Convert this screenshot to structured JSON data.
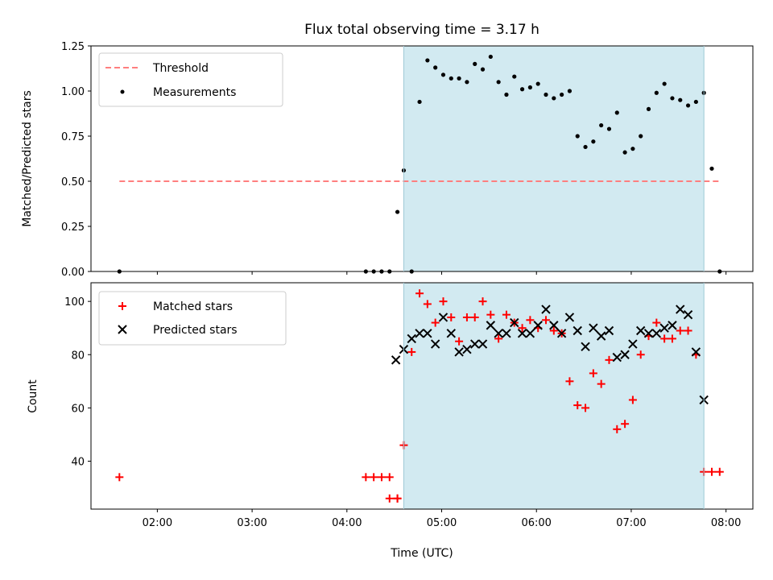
{
  "chart_data": [
    {
      "type": "scatter",
      "title": "Flux total observing time = 3.17 h",
      "ylabel": "Matched/Predicted stars",
      "xlabel": "",
      "ylim": [
        0,
        1.25
      ],
      "yticks": [
        0.0,
        0.25,
        0.5,
        0.75,
        1.0,
        1.25
      ],
      "ytick_labels": [
        "0.00",
        "0.25",
        "0.50",
        "0.75",
        "1.00",
        "1.25"
      ],
      "shaded_interval": {
        "start": "04:36",
        "end": "07:46",
        "color": "#add8e6"
      },
      "legend_position": "top-left",
      "series": [
        {
          "name": "Threshold",
          "style": "dashed-line",
          "color": "#ff7f7f",
          "x": [
            "01:36",
            "07:56"
          ],
          "y": [
            0.5,
            0.5
          ]
        },
        {
          "name": "Measurements",
          "style": "dot",
          "color": "#000000",
          "x": [
            "01:36",
            "04:12",
            "04:17",
            "04:22",
            "04:27",
            "04:32",
            "04:41",
            "04:36",
            "04:46",
            "04:51",
            "04:56",
            "05:01",
            "05:06",
            "05:11",
            "05:16",
            "05:21",
            "05:26",
            "05:31",
            "05:36",
            "05:41",
            "05:46",
            "05:51",
            "05:56",
            "06:01",
            "06:06",
            "06:11",
            "06:16",
            "06:21",
            "06:26",
            "06:31",
            "06:36",
            "06:41",
            "06:46",
            "06:51",
            "06:56",
            "07:01",
            "07:06",
            "07:11",
            "07:16",
            "07:21",
            "07:26",
            "07:31",
            "07:36",
            "07:41",
            "07:46",
            "07:51",
            "07:56"
          ],
          "y": [
            0.0,
            0.0,
            0.0,
            0.0,
            0.0,
            0.33,
            0.0,
            0.56,
            0.94,
            1.17,
            1.13,
            1.09,
            1.07,
            1.07,
            1.05,
            1.15,
            1.12,
            1.19,
            1.05,
            0.98,
            1.08,
            1.01,
            1.02,
            1.04,
            0.98,
            0.96,
            0.98,
            1.0,
            0.75,
            0.69,
            0.72,
            0.81,
            0.79,
            0.88,
            0.66,
            0.68,
            0.75,
            0.9,
            0.99,
            1.04,
            0.96,
            0.95,
            0.92,
            0.94,
            0.99,
            0.57,
            0.0
          ]
        }
      ]
    },
    {
      "type": "scatter",
      "xlabel": "Time (UTC)",
      "ylabel": "Count",
      "ylim": [
        22,
        107
      ],
      "yticks": [
        40,
        60,
        80,
        100
      ],
      "ytick_labels": [
        "40",
        "60",
        "80",
        "100"
      ],
      "xticks": [
        "02:00",
        "03:00",
        "04:00",
        "05:00",
        "06:00",
        "07:00",
        "08:00"
      ],
      "xlim": [
        "01:18",
        "08:17"
      ],
      "shaded_interval": {
        "start": "04:36",
        "end": "07:46",
        "color": "#add8e6"
      },
      "legend_position": "top-left",
      "series": [
        {
          "name": "Matched stars",
          "style": "plus",
          "color": "#ff0000",
          "x": [
            "01:36",
            "04:12",
            "04:17",
            "04:22",
            "04:27",
            "04:32",
            "04:27",
            "04:32",
            "04:36",
            "04:41",
            "04:46",
            "04:51",
            "04:56",
            "05:01",
            "05:06",
            "05:11",
            "05:16",
            "05:21",
            "05:26",
            "05:31",
            "05:36",
            "05:41",
            "05:46",
            "05:51",
            "05:56",
            "06:01",
            "06:06",
            "06:11",
            "06:16",
            "06:21",
            "06:26",
            "06:31",
            "06:36",
            "06:41",
            "06:46",
            "06:51",
            "06:56",
            "07:01",
            "07:06",
            "07:11",
            "07:16",
            "07:21",
            "07:26",
            "07:31",
            "07:36",
            "07:41",
            "07:46",
            "07:51",
            "07:56"
          ],
          "y": [
            34,
            34,
            34,
            34,
            34,
            26,
            26,
            26,
            46,
            81,
            103,
            99,
            92,
            100,
            94,
            85,
            94,
            94,
            100,
            95,
            86,
            95,
            92,
            90,
            93,
            90,
            93,
            89,
            88,
            70,
            61,
            60,
            73,
            69,
            78,
            52,
            54,
            63,
            80,
            87,
            92,
            86,
            86,
            89,
            89,
            80,
            36,
            36,
            36
          ]
        },
        {
          "name": "Predicted stars",
          "style": "x",
          "color": "#000000",
          "x": [
            "04:31",
            "04:36",
            "04:41",
            "04:46",
            "04:51",
            "04:56",
            "05:01",
            "05:06",
            "05:11",
            "05:16",
            "05:21",
            "05:26",
            "05:31",
            "05:36",
            "05:41",
            "05:46",
            "05:51",
            "05:56",
            "06:01",
            "06:06",
            "06:11",
            "06:16",
            "06:21",
            "06:26",
            "06:31",
            "06:36",
            "06:41",
            "06:46",
            "06:51",
            "06:56",
            "07:01",
            "07:06",
            "07:11",
            "07:16",
            "07:21",
            "07:26",
            "07:31",
            "07:36",
            "07:41",
            "07:46",
            "07:51"
          ],
          "y": [
            78,
            82,
            86,
            88,
            88,
            84,
            94,
            88,
            81,
            82,
            84,
            84,
            91,
            88,
            88,
            92,
            88,
            88,
            91,
            97,
            91,
            88,
            94,
            89,
            83,
            90,
            87,
            89,
            79,
            80,
            84,
            89,
            88,
            88,
            90,
            91,
            97,
            95,
            81,
            63,
            null
          ]
        }
      ]
    }
  ]
}
